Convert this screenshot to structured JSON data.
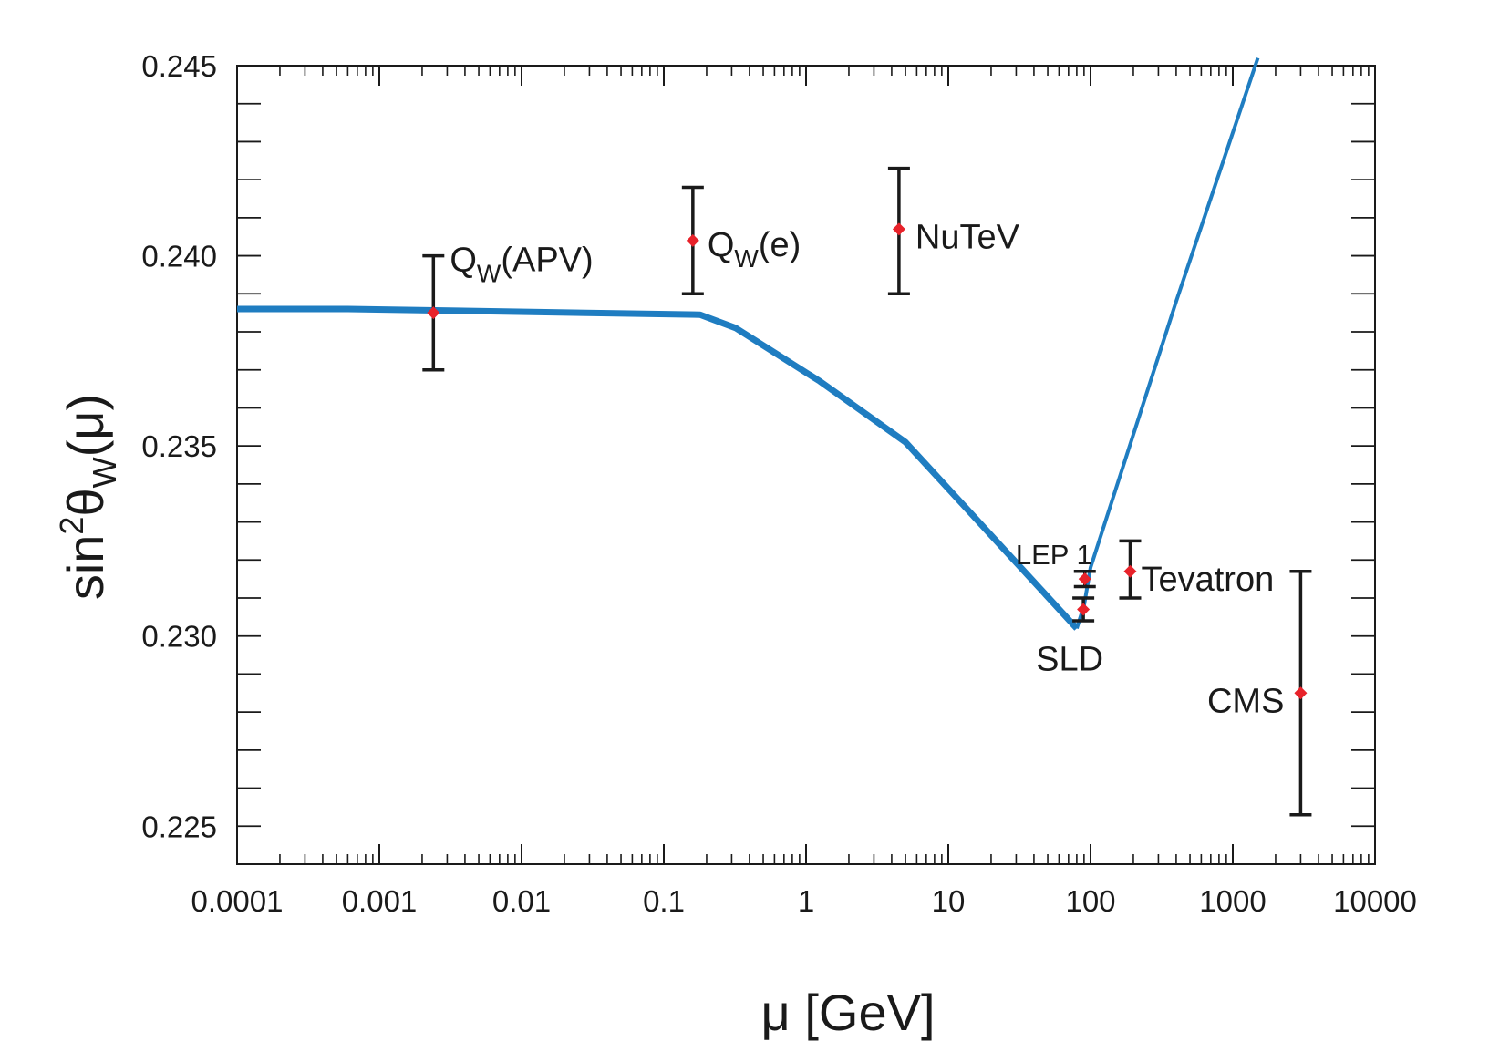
{
  "chart_data": {
    "type": "scatter",
    "x_scale": "log",
    "xlim": [
      0.0001,
      10000
    ],
    "ylim": [
      0.224,
      0.245
    ],
    "x_ticks": [
      0.0001,
      0.001,
      0.01,
      0.1,
      1,
      10,
      100,
      1000,
      10000
    ],
    "x_tick_labels": [
      "0.0001",
      "0.001",
      "0.01",
      "0.1",
      "1",
      "10",
      "100",
      "1000",
      "10000"
    ],
    "y_ticks": [
      0.225,
      0.23,
      0.235,
      0.24,
      0.245
    ],
    "y_tick_labels": [
      "0.225",
      "0.230",
      "0.235",
      "0.240",
      "0.245"
    ],
    "xlabel": "μ [GeV]",
    "ylabel": {
      "base": "sin",
      "sup": "2",
      "theta": "θ",
      "sub": "W",
      "arg": "(μ)"
    },
    "curve_color": "#1f7dc1",
    "marker_color": "#e8222a",
    "errorbar_color": "#1a1a1a",
    "curve": {
      "name": "running sin²θW",
      "x": [
        0.0001,
        0.0006,
        0.18,
        0.32,
        1.25,
        5,
        80,
        90,
        100,
        400,
        1500
      ],
      "y": [
        0.2386,
        0.2386,
        0.23845,
        0.2381,
        0.2367,
        0.2351,
        0.2302,
        0.2308,
        0.2318,
        0.2388,
        0.2452
      ]
    },
    "points": [
      {
        "name": "QW(APV)",
        "label_main": "Q",
        "label_sub": "W",
        "label_rest": "(APV)",
        "x": 0.0024,
        "y": 0.2385,
        "err_low": 0.237,
        "err_high": 0.24
      },
      {
        "name": "QW(e)",
        "label_main": "Q",
        "label_sub": "W",
        "label_rest": "(e)",
        "x": 0.16,
        "y": 0.2404,
        "err_low": 0.239,
        "err_high": 0.2418
      },
      {
        "name": "NuTeV",
        "label_main": "NuTeV",
        "label_sub": "",
        "label_rest": "",
        "x": 4.5,
        "y": 0.2407,
        "err_low": 0.239,
        "err_high": 0.2423
      },
      {
        "name": "LEP 1",
        "label_main": "LEP 1",
        "label_sub": "",
        "label_rest": "",
        "x": 91.2,
        "y": 0.2315,
        "err_low": 0.2313,
        "err_high": 0.2317
      },
      {
        "name": "SLD",
        "label_main": "SLD",
        "label_sub": "",
        "label_rest": "",
        "x": 89,
        "y": 0.2307,
        "err_low": 0.2304,
        "err_high": 0.231
      },
      {
        "name": "Tevatron",
        "label_main": "Tevatron",
        "label_sub": "",
        "label_rest": "",
        "x": 190,
        "y": 0.2317,
        "err_low": 0.231,
        "err_high": 0.2325
      },
      {
        "name": "CMS",
        "label_main": "CMS",
        "label_sub": "",
        "label_rest": "",
        "x": 3000,
        "y": 0.2285,
        "err_low": 0.2253,
        "err_high": 0.2317
      }
    ]
  }
}
